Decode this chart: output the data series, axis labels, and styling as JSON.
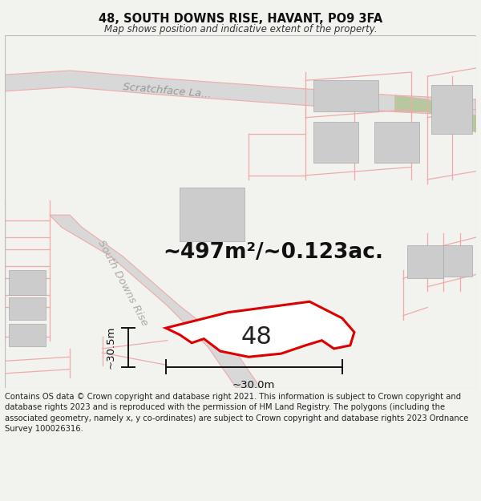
{
  "title": "48, SOUTH DOWNS RISE, HAVANT, PO9 3FA",
  "subtitle": "Map shows position and indicative extent of the property.",
  "area_text": "~497m²/~0.123ac.",
  "number_label": "48",
  "dim_horizontal": "~30.0m",
  "dim_vertical": "~30.5m",
  "road_label_top": "Scratchface La...",
  "road_label_bottom": "South Downs Rise",
  "copyright_text": "Contains OS data © Crown copyright and database right 2021. This information is subject to Crown copyright and database rights 2023 and is reproduced with the permission of HM Land Registry. The polygons (including the associated geometry, namely x, y co-ordinates) are subject to Crown copyright and database rights 2023 Ordnance Survey 100026316.",
  "bg_color": "#f2f2ee",
  "map_bg": "#ffffff",
  "plot_line_color": "#dd0000",
  "other_line_color": "#f0aaaa",
  "dim_line_color": "#111111",
  "building_fill": "#cccccc",
  "green_fill": "#b5c8a0",
  "road_fill": "#d8d8d8",
  "title_fontsize": 10.5,
  "subtitle_fontsize": 8.5,
  "area_fontsize": 19,
  "label_fontsize": 22,
  "copyright_fontsize": 7.2,
  "road_label_fontsize": 9.5
}
